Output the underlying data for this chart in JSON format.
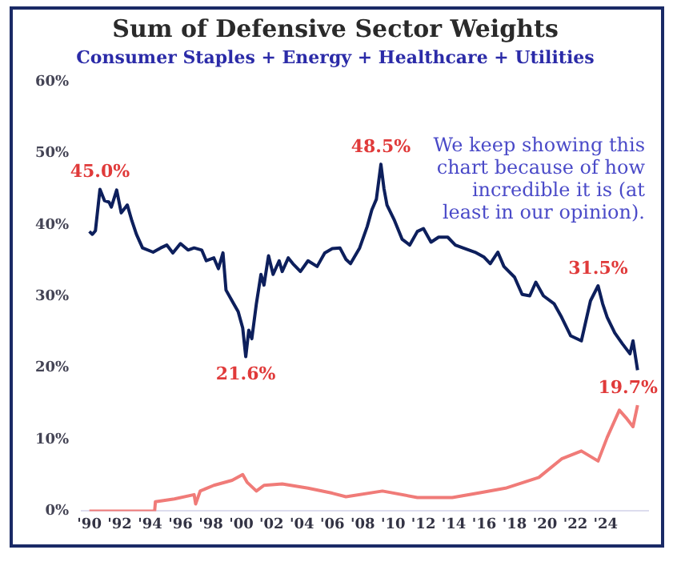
{
  "chart_data": {
    "type": "line",
    "title": "Sum of Defensive Sector Weights",
    "subtitle": "Consumer Staples + Energy + Healthcare + Utilities",
    "series": [
      {
        "color": "#0d1f5c",
        "x": [
          1990.0,
          1990.2,
          1990.4,
          1990.7,
          1991.0,
          1991.3,
          1991.45,
          1991.8,
          1992.1,
          1992.5,
          1992.8,
          1993.1,
          1993.5,
          1994.2,
          1994.7,
          1995.1,
          1995.5,
          1996.0,
          1996.5,
          1996.9,
          1997.4,
          1997.7,
          1998.2,
          1998.5,
          1998.8,
          1999.0,
          1999.5,
          1999.8,
          2000.1,
          2000.3,
          2000.5,
          2000.7,
          2001.0,
          2001.3,
          2001.5,
          2001.8,
          2002.1,
          2002.5,
          2002.7,
          2003.1,
          2003.4,
          2003.9,
          2004.4,
          2005.0,
          2005.5,
          2006.0,
          2006.5,
          2006.9,
          2007.2,
          2007.8,
          2008.3,
          2008.6,
          2008.9,
          2009.2,
          2009.4,
          2009.6,
          2010.1,
          2010.6,
          2011.1,
          2011.6,
          2012.0,
          2012.5,
          2013.0,
          2013.6,
          2014.1,
          2014.6,
          2015.4,
          2016.0,
          2016.4,
          2016.9,
          2017.3,
          2018.0,
          2018.5,
          2019.0,
          2019.4,
          2019.9,
          2020.6,
          2021.1,
          2021.7,
          2022.4,
          2023.0,
          2023.5,
          2023.8,
          2024.1,
          2024.6,
          2025.1,
          2025.6,
          2025.8,
          2026.1
        ],
        "values": [
          39.1,
          38.7,
          39.2,
          45.0,
          43.4,
          43.2,
          42.5,
          44.9,
          41.7,
          42.8,
          40.6,
          38.7,
          36.8,
          36.2,
          36.8,
          37.2,
          36.1,
          37.4,
          36.5,
          36.8,
          36.5,
          35.0,
          35.4,
          33.9,
          36.1,
          30.9,
          29.0,
          27.9,
          25.6,
          21.6,
          25.3,
          24.1,
          29.0,
          33.1,
          31.6,
          35.7,
          33.1,
          35.0,
          33.5,
          35.4,
          34.6,
          33.5,
          35.0,
          34.2,
          36.1,
          36.7,
          36.8,
          35.2,
          34.6,
          36.8,
          39.8,
          42.1,
          43.6,
          48.5,
          45.1,
          42.8,
          40.6,
          38.0,
          37.2,
          39.1,
          39.5,
          37.6,
          38.3,
          38.3,
          37.2,
          36.8,
          36.2,
          35.5,
          34.6,
          36.2,
          34.2,
          32.7,
          30.3,
          30.1,
          32.0,
          30.1,
          29.0,
          27.1,
          24.5,
          23.8,
          29.4,
          31.5,
          29.0,
          27.1,
          24.9,
          23.4,
          22.0,
          23.8,
          19.7
        ]
      },
      {
        "color": "#f07b78",
        "x": [
          1990.0,
          1994.3,
          1994.35,
          1995.6,
          1996.9,
          1997.0,
          1997.3,
          1998.2,
          1999.4,
          2000.1,
          2000.4,
          2001.0,
          2001.5,
          2002.7,
          2004.4,
          2006.0,
          2006.9,
          2009.3,
          2011.6,
          2013.9,
          2015.8,
          2017.4,
          2019.6,
          2021.1,
          2022.4,
          2023.5,
          2024.1,
          2024.9,
          2025.4,
          2025.8,
          2026.1
        ],
        "values": [
          0,
          0,
          1.3,
          1.7,
          2.3,
          1.0,
          2.8,
          3.6,
          4.3,
          5.1,
          4.0,
          2.8,
          3.6,
          3.8,
          3.2,
          2.5,
          2.0,
          2.8,
          1.9,
          1.9,
          2.6,
          3.2,
          4.7,
          7.3,
          8.4,
          7.0,
          10.3,
          14.1,
          12.9,
          11.8,
          14.8
        ]
      }
    ],
    "annotations": [
      {
        "text": "45.0%",
        "x": 1990.7,
        "y": 45.0
      },
      {
        "text": "21.6%",
        "x": 2000.3,
        "y": 21.6
      },
      {
        "text": "48.5%",
        "x": 2009.2,
        "y": 48.5
      },
      {
        "text": "31.5%",
        "x": 2023.5,
        "y": 31.5
      },
      {
        "text": "19.7%",
        "x": 2026.1,
        "y": 19.7
      },
      "We keep showing this chart because of how incredible it is (at least in our opinion)."
    ],
    "xlim": [
      1989.5,
      2026.8
    ],
    "xticks": [
      {
        "value": 1990,
        "label": "'90"
      },
      {
        "value": 1992,
        "label": "'92"
      },
      {
        "value": 1994,
        "label": "'94"
      },
      {
        "value": 1996,
        "label": "'96"
      },
      {
        "value": 1998,
        "label": "'98"
      },
      {
        "value": 2000,
        "label": "'00"
      },
      {
        "value": 2002,
        "label": "'02"
      },
      {
        "value": 2004,
        "label": "'04"
      },
      {
        "value": 2006,
        "label": "'06"
      },
      {
        "value": 2008,
        "label": "'08"
      },
      {
        "value": 2010,
        "label": "'10"
      },
      {
        "value": 2012,
        "label": "'12"
      },
      {
        "value": 2014,
        "label": "'14"
      },
      {
        "value": 2016,
        "label": "'16"
      },
      {
        "value": 2018,
        "label": "'18"
      },
      {
        "value": 2020,
        "label": "'20"
      },
      {
        "value": 2022,
        "label": "'22"
      },
      {
        "value": 2024,
        "label": "'24"
      }
    ],
    "ylim": [
      0,
      60
    ],
    "yticks": [
      {
        "value": 0,
        "label": "0%"
      },
      {
        "value": 10,
        "label": "10%"
      },
      {
        "value": 20,
        "label": "20%"
      },
      {
        "value": 30,
        "label": "30%"
      },
      {
        "value": 40,
        "label": "40%"
      },
      {
        "value": 50,
        "label": "50%"
      },
      {
        "value": 60,
        "label": "60%"
      }
    ],
    "grid": false,
    "legend": false,
    "marker": "none",
    "line_style": "solid"
  }
}
